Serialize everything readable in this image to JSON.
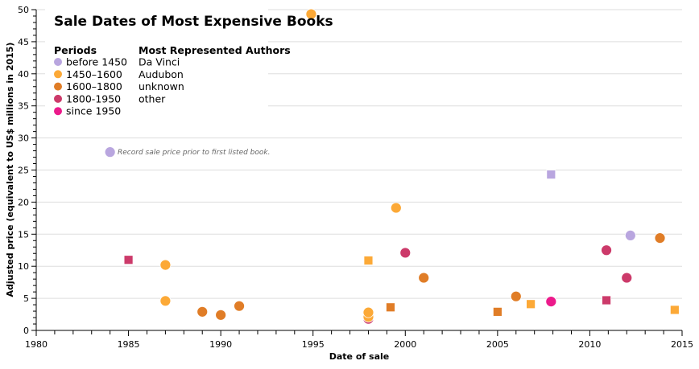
{
  "chart_data": {
    "type": "scatter",
    "title": "Sale Dates of Most Expensive Books",
    "xlabel": "Date of sale",
    "ylabel": "Adjusted price (equivalent to US$ millions in 2015)",
    "xlim": [
      1980,
      2015
    ],
    "ylim": [
      0,
      50
    ],
    "x_ticks": [
      1980,
      1985,
      1990,
      1995,
      2000,
      2005,
      2010,
      2015
    ],
    "y_ticks": [
      0,
      5,
      10,
      15,
      20,
      25,
      30,
      35,
      40,
      45,
      50
    ],
    "grid": "horizontal",
    "legend": {
      "placement": "top-left",
      "periods_title": "Periods",
      "periods": [
        {
          "key": "before1450",
          "label": "before 1450",
          "color": "#b9a6df"
        },
        {
          "key": "1450_1600",
          "label": "1450–1600",
          "color": "#fca937"
        },
        {
          "key": "1600_1800",
          "label": "1600–1800",
          "color": "#e07d27"
        },
        {
          "key": "1800_1950",
          "label": "1800-1950",
          "color": "#cc3a6a"
        },
        {
          "key": "since1950",
          "label": "since 1950",
          "color": "#ec1a8b"
        }
      ],
      "authors_title": "Most Represented Authors",
      "authors": [
        "Da Vinci",
        "Audubon",
        "unknown",
        "other"
      ]
    },
    "annotation": {
      "text": "Record sale price prior to first listed book.",
      "x": 1984.0,
      "y": 27.8
    },
    "points": [
      {
        "x": 1984.0,
        "y": 27.8,
        "period": "before1450",
        "shape": "circle"
      },
      {
        "x": 1985.0,
        "y": 11.0,
        "period": "1800_1950",
        "shape": "square"
      },
      {
        "x": 1987.0,
        "y": 10.2,
        "period": "1450_1600",
        "shape": "circle"
      },
      {
        "x": 1987.0,
        "y": 4.6,
        "period": "1450_1600",
        "shape": "circle"
      },
      {
        "x": 1989.0,
        "y": 2.9,
        "period": "1600_1800",
        "shape": "circle"
      },
      {
        "x": 1990.0,
        "y": 2.4,
        "period": "1600_1800",
        "shape": "circle"
      },
      {
        "x": 1991.0,
        "y": 3.8,
        "period": "1600_1800",
        "shape": "circle"
      },
      {
        "x": 1994.9,
        "y": 49.3,
        "period": "1450_1600",
        "shape": "circle"
      },
      {
        "x": 1998.0,
        "y": 10.9,
        "period": "1450_1600",
        "shape": "square"
      },
      {
        "x": 1998.0,
        "y": 1.8,
        "period": "1800_1950",
        "shape": "circle"
      },
      {
        "x": 1998.0,
        "y": 2.1,
        "period": "1450_1600",
        "shape": "circle"
      },
      {
        "x": 1998.0,
        "y": 2.8,
        "period": "1450_1600",
        "shape": "circle"
      },
      {
        "x": 1999.2,
        "y": 3.6,
        "period": "1600_1800",
        "shape": "square"
      },
      {
        "x": 1999.5,
        "y": 19.1,
        "period": "1450_1600",
        "shape": "circle"
      },
      {
        "x": 2000.0,
        "y": 12.1,
        "period": "1800_1950",
        "shape": "circle"
      },
      {
        "x": 2001.0,
        "y": 8.2,
        "period": "1600_1800",
        "shape": "circle"
      },
      {
        "x": 2005.0,
        "y": 2.9,
        "period": "1600_1800",
        "shape": "square"
      },
      {
        "x": 2006.0,
        "y": 5.3,
        "period": "1600_1800",
        "shape": "circle"
      },
      {
        "x": 2006.8,
        "y": 4.1,
        "period": "1450_1600",
        "shape": "square"
      },
      {
        "x": 2007.9,
        "y": 24.3,
        "period": "before1450",
        "shape": "square"
      },
      {
        "x": 2007.9,
        "y": 4.5,
        "period": "since1950",
        "shape": "circle"
      },
      {
        "x": 2010.9,
        "y": 12.5,
        "period": "1800_1950",
        "shape": "circle"
      },
      {
        "x": 2010.9,
        "y": 4.7,
        "period": "1800_1950",
        "shape": "square"
      },
      {
        "x": 2012.0,
        "y": 8.2,
        "period": "1800_1950",
        "shape": "circle"
      },
      {
        "x": 2012.2,
        "y": 14.8,
        "period": "before1450",
        "shape": "circle"
      },
      {
        "x": 2013.8,
        "y": 14.4,
        "period": "1600_1800",
        "shape": "circle"
      },
      {
        "x": 2014.6,
        "y": 3.2,
        "period": "1450_1600",
        "shape": "square"
      }
    ]
  }
}
